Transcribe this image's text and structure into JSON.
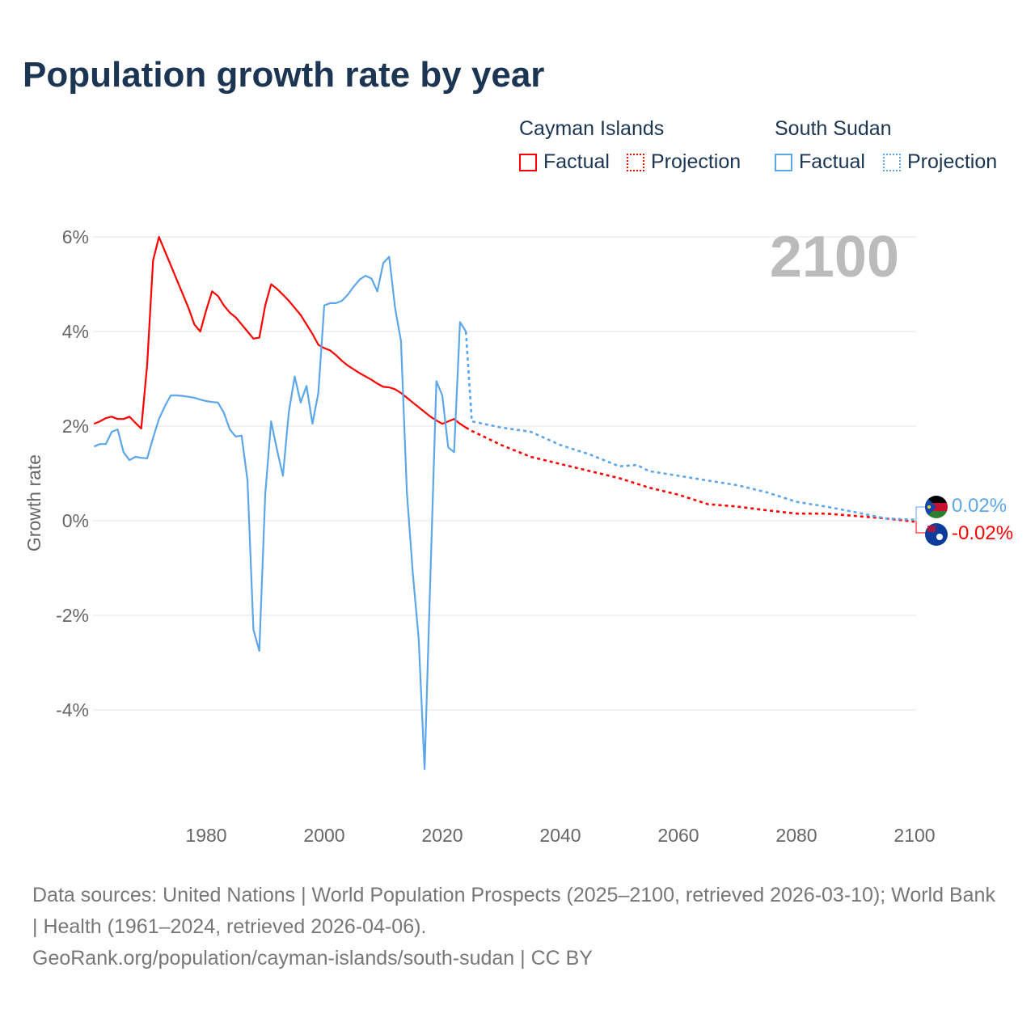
{
  "title": "Population growth rate by year",
  "legend": {
    "groups": [
      {
        "name": "Cayman Islands",
        "factual": "Factual",
        "projection": "Projection",
        "color": "#ff0000"
      },
      {
        "name": "South Sudan",
        "factual": "Factual",
        "projection": "Projection",
        "color": "#5ca6ea"
      }
    ]
  },
  "year_label": "2100",
  "end_labels": {
    "cayman": "-0.02%",
    "south_sudan": "0.02%"
  },
  "sources": {
    "line1": "Data sources: United Nations | World Population Prospects (2025–2100, retrieved 2026-03-10); World Bank | Health (1961–2024, retrieved 2026-04-06).",
    "line2": "GeoRank.org/population/cayman-islands/south-sudan | CC BY"
  },
  "chart_data": {
    "type": "line",
    "title": "Population growth rate by year",
    "xlabel": "",
    "ylabel": "Growth rate",
    "xlim": [
      1961,
      2100
    ],
    "ylim": [
      -5.8,
      6.5
    ],
    "xticks": [
      1980,
      2000,
      2020,
      2040,
      2060,
      2080,
      2100
    ],
    "xtick_labels": [
      "1980",
      "2000",
      "2020",
      "2040",
      "2060",
      "2080",
      "2100"
    ],
    "yticks": [
      6,
      4,
      2,
      0,
      -2,
      -4
    ],
    "ytick_labels": [
      "6%",
      "4%",
      "2%",
      "0%",
      "-2%",
      "-4%"
    ],
    "grid": true,
    "legend_position": "top-right",
    "series": [
      {
        "name": "Cayman Islands",
        "kind": "factual",
        "color": "#ff0000",
        "x": [
          1961,
          1962,
          1963,
          1964,
          1965,
          1966,
          1967,
          1968,
          1969,
          1970,
          1971,
          1972,
          1973,
          1974,
          1975,
          1976,
          1977,
          1978,
          1979,
          1980,
          1981,
          1982,
          1983,
          1984,
          1985,
          1986,
          1987,
          1988,
          1989,
          1990,
          1991,
          1992,
          1993,
          1994,
          1995,
          1996,
          1997,
          1998,
          1999,
          2000,
          2001,
          2002,
          2003,
          2004,
          2005,
          2006,
          2007,
          2008,
          2009,
          2010,
          2011,
          2012,
          2013,
          2014,
          2015,
          2016,
          2017,
          2018,
          2019,
          2020,
          2021,
          2022,
          2023,
          2024
        ],
        "y": [
          2.05,
          2.1,
          2.17,
          2.2,
          2.15,
          2.15,
          2.2,
          2.07,
          1.95,
          3.3,
          5.5,
          6.0,
          5.7,
          5.4,
          5.1,
          4.8,
          4.5,
          4.15,
          4.0,
          4.45,
          4.85,
          4.75,
          4.55,
          4.4,
          4.3,
          4.15,
          4.0,
          3.85,
          3.87,
          4.55,
          5.0,
          4.9,
          4.78,
          4.65,
          4.5,
          4.35,
          4.15,
          3.95,
          3.72,
          3.65,
          3.6,
          3.5,
          3.38,
          3.28,
          3.2,
          3.12,
          3.05,
          2.98,
          2.9,
          2.83,
          2.82,
          2.78,
          2.7,
          2.6,
          2.5,
          2.4,
          2.3,
          2.2,
          2.12,
          2.05,
          2.1,
          2.15,
          2.05,
          1.97
        ]
      },
      {
        "name": "Cayman Islands",
        "kind": "projection",
        "color": "#ff0000",
        "x": [
          2024,
          2025,
          2030,
          2035,
          2040,
          2045,
          2050,
          2055,
          2060,
          2065,
          2070,
          2075,
          2080,
          2085,
          2090,
          2095,
          2100
        ],
        "y": [
          1.97,
          1.9,
          1.6,
          1.35,
          1.2,
          1.05,
          0.9,
          0.7,
          0.55,
          0.35,
          0.3,
          0.22,
          0.15,
          0.15,
          0.1,
          0.05,
          -0.02
        ]
      },
      {
        "name": "South Sudan",
        "kind": "factual",
        "color": "#5ca6ea",
        "x": [
          1961,
          1962,
          1963,
          1964,
          1965,
          1966,
          1967,
          1968,
          1969,
          1970,
          1971,
          1972,
          1973,
          1974,
          1975,
          1976,
          1977,
          1978,
          1979,
          1980,
          1981,
          1982,
          1983,
          1984,
          1985,
          1986,
          1987,
          1988,
          1989,
          1990,
          1991,
          1992,
          1993,
          1994,
          1995,
          1996,
          1997,
          1998,
          1999,
          2000,
          2001,
          2002,
          2003,
          2004,
          2005,
          2006,
          2007,
          2008,
          2009,
          2010,
          2011,
          2012,
          2013,
          2014,
          2015,
          2016,
          2017,
          2018,
          2019,
          2020,
          2021,
          2022,
          2023,
          2024
        ],
        "y": [
          1.57,
          1.62,
          1.62,
          1.88,
          1.93,
          1.45,
          1.28,
          1.35,
          1.33,
          1.32,
          1.75,
          2.15,
          2.42,
          2.65,
          2.65,
          2.64,
          2.62,
          2.6,
          2.56,
          2.53,
          2.51,
          2.5,
          2.28,
          1.93,
          1.78,
          1.8,
          0.85,
          -2.3,
          -2.75,
          0.55,
          2.1,
          1.5,
          0.95,
          2.3,
          3.05,
          2.5,
          2.85,
          2.05,
          2.7,
          4.55,
          4.6,
          4.6,
          4.65,
          4.78,
          4.95,
          5.1,
          5.18,
          5.12,
          4.85,
          5.45,
          5.58,
          4.5,
          3.8,
          0.6,
          -1.1,
          -2.5,
          -5.25,
          -1.1,
          2.95,
          2.65,
          1.55,
          1.45,
          4.2,
          4.0
        ]
      },
      {
        "name": "South Sudan",
        "kind": "projection",
        "color": "#5ca6ea",
        "x": [
          2024,
          2025,
          2030,
          2035,
          2040,
          2045,
          2050,
          2053,
          2055,
          2060,
          2065,
          2070,
          2075,
          2080,
          2085,
          2090,
          2095,
          2100
        ],
        "y": [
          4.0,
          2.1,
          1.97,
          1.88,
          1.6,
          1.4,
          1.15,
          1.18,
          1.05,
          0.95,
          0.85,
          0.75,
          0.6,
          0.4,
          0.3,
          0.18,
          0.05,
          0.02
        ]
      }
    ]
  }
}
